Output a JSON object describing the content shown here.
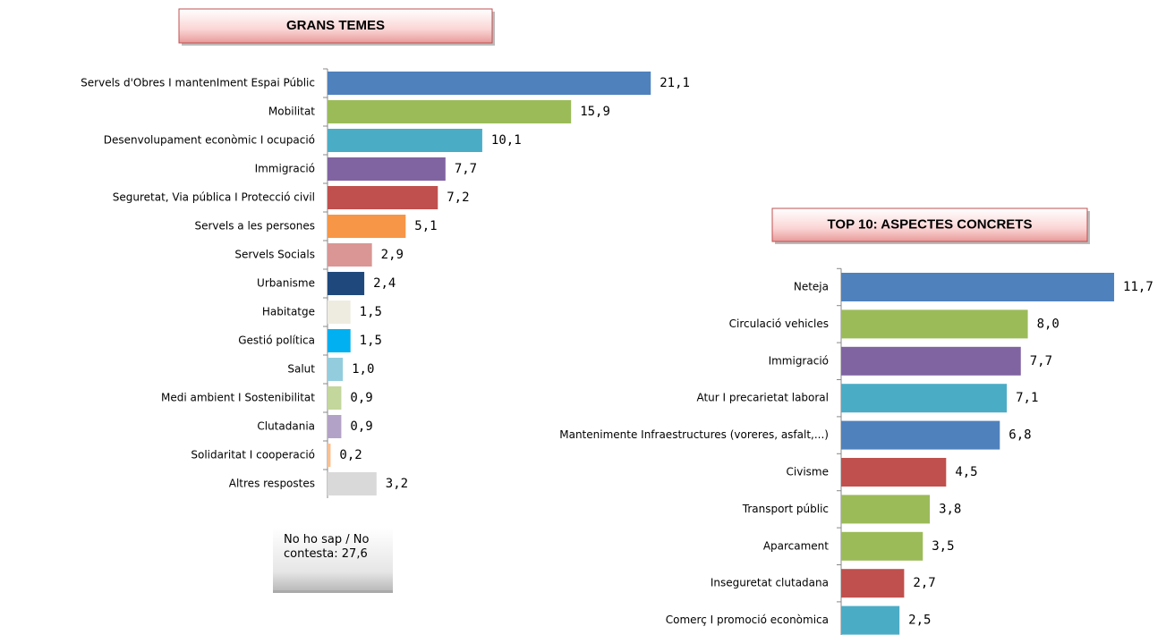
{
  "chart_data": [
    {
      "type": "barh",
      "title": "GRANS TEMES",
      "categories": [
        "Servels d'Obres I mantenIment Espai Públic",
        "Mobilitat",
        "Desenvolupament econòmic I ocupació",
        "Immigració",
        "Seguretat, Via pública I Protecció civil",
        "Servels a les persones",
        "Servels Socials",
        "Urbanisme",
        "Habitatge",
        "Gestió política",
        "Salut",
        "Medi ambient I Sostenibilitat",
        "Clutadania",
        "Solidaritat I cooperació",
        "Altres respostes"
      ],
      "values": [
        21.1,
        15.9,
        10.1,
        7.7,
        7.2,
        5.1,
        2.9,
        2.4,
        1.5,
        1.5,
        1.0,
        0.9,
        0.9,
        0.2,
        3.2
      ],
      "value_labels": [
        "21,1",
        "15,9",
        "10,1",
        "7,7",
        "7,2",
        "5,1",
        "2,9",
        "2,4",
        "1,5",
        "1,5",
        "1,0",
        "0,9",
        "0,9",
        "0,2",
        "3,2"
      ],
      "colors": [
        "#4f81bd",
        "#9bbb59",
        "#4bacc6",
        "#8064a2",
        "#c0504d",
        "#f79646",
        "#d99694",
        "#1f497d",
        "#eeece1",
        "#00b0f0",
        "#93cddd",
        "#c3d69b",
        "#b3a2c7",
        "#fac090",
        "#d9d9d9"
      ],
      "xlim": [
        0,
        25
      ],
      "annotation": "No ho sap / No contesta: 27,6"
    },
    {
      "type": "barh",
      "title": "TOP 10: ASPECTES CONCRETS",
      "categories": [
        "Neteja",
        "Circulació vehicles",
        "Immigració",
        "Atur I precarietat laboral",
        "Mantenimente Infraestructures (voreres, asfalt,...)",
        "Civisme",
        "Transport públic",
        "Aparcament",
        "Inseguretat clutadana",
        "Comerç I promoció econòmica"
      ],
      "values": [
        11.7,
        8.0,
        7.7,
        7.1,
        6.8,
        4.5,
        3.8,
        3.5,
        2.7,
        2.5
      ],
      "value_labels": [
        "11,7",
        "8,0",
        "7,7",
        "7,1",
        "6,8",
        "4,5",
        "3,8",
        "3,5",
        "2,7",
        "2,5"
      ],
      "colors": [
        "#4f81bd",
        "#9bbb59",
        "#8064a2",
        "#4bacc6",
        "#4f81bd",
        "#c0504d",
        "#9bbb59",
        "#9bbb59",
        "#c0504d",
        "#4bacc6"
      ],
      "xlim": [
        0,
        14
      ]
    }
  ]
}
